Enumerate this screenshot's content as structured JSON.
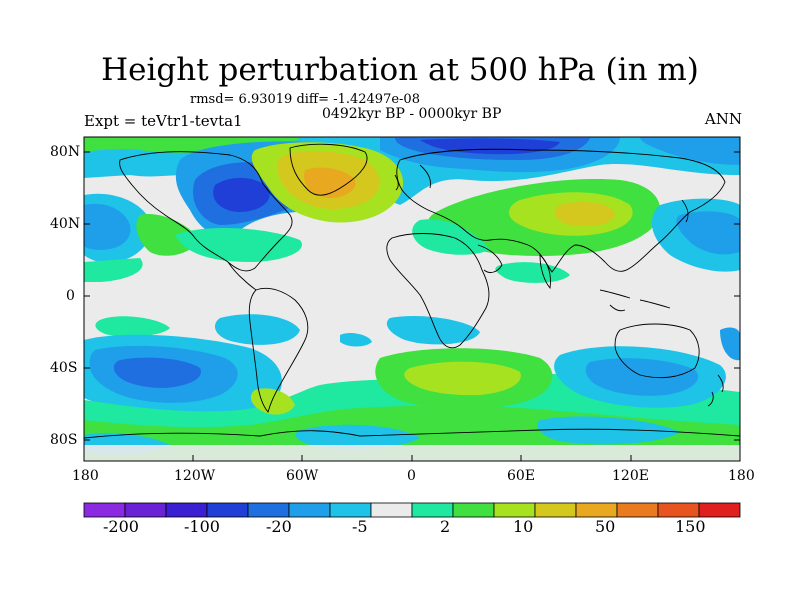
{
  "figure": {
    "title": "Height perturbation at 500 hPa (in m)",
    "stats": "rmsd= 6.93019 diff= -1.42497e-08",
    "period": "0492kyr BP - 0000kyr BP",
    "experiment": "Expt = teVtr1-tevta1",
    "season": "ANN"
  },
  "axes": {
    "lat_labels": [
      "80N",
      "40N",
      "0",
      "40S",
      "80S"
    ],
    "lon_labels": [
      "180",
      "120W",
      "60W",
      "0",
      "60E",
      "120E",
      "180"
    ]
  },
  "colorbar": {
    "colors": [
      "#8a2be2",
      "#6a22d6",
      "#3b1fd2",
      "#1f3fd6",
      "#1f6fe0",
      "#1f9fea",
      "#1fc3e8",
      "#ebebeb",
      "#1fe8a0",
      "#3fe03f",
      "#a6e21f",
      "#d4c81f",
      "#e8a81f",
      "#ea7a1f",
      "#e8541f",
      "#e0201f"
    ],
    "tick_labels": [
      "-200",
      "-100",
      "-20",
      "-5",
      "2",
      "10",
      "50",
      "150"
    ]
  },
  "colors": {
    "background": "#ebebeb",
    "coast": "#000000"
  }
}
